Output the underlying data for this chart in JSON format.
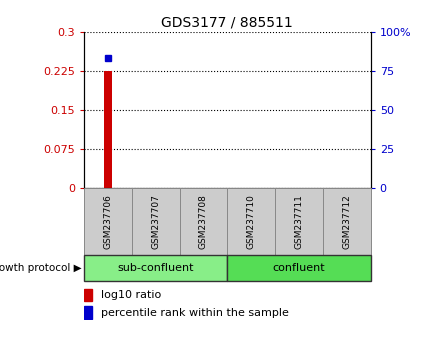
{
  "title": "GDS3177 / 885511",
  "samples": [
    "GSM237706",
    "GSM237707",
    "GSM237708",
    "GSM237710",
    "GSM237711",
    "GSM237712"
  ],
  "log10_values": [
    0.225,
    0.0,
    0.0,
    0.0,
    0.0,
    0.0
  ],
  "percentile_values": [
    83.0,
    null,
    null,
    null,
    null,
    null
  ],
  "ylim_left": [
    0,
    0.3
  ],
  "ylim_right": [
    0,
    100
  ],
  "yticks_left": [
    0,
    0.075,
    0.15,
    0.225,
    0.3
  ],
  "yticks_right": [
    0,
    25,
    50,
    75,
    100
  ],
  "ytick_labels_left": [
    "0",
    "0.075",
    "0.15",
    "0.225",
    "0.3"
  ],
  "ytick_labels_right": [
    "0",
    "25",
    "50",
    "75",
    "100%"
  ],
  "bar_color": "#cc0000",
  "dot_color": "#0000cc",
  "groups": [
    {
      "label": "sub-confluent",
      "start": 0,
      "end": 3,
      "color": "#88ee88"
    },
    {
      "label": "confluent",
      "start": 3,
      "end": 6,
      "color": "#55dd55"
    }
  ],
  "group_label_text": "growth protocol",
  "legend_bar_label": "log10 ratio",
  "legend_dot_label": "percentile rank within the sample",
  "sample_box_color": "#cccccc",
  "figsize": [
    4.31,
    3.54
  ],
  "dpi": 100
}
